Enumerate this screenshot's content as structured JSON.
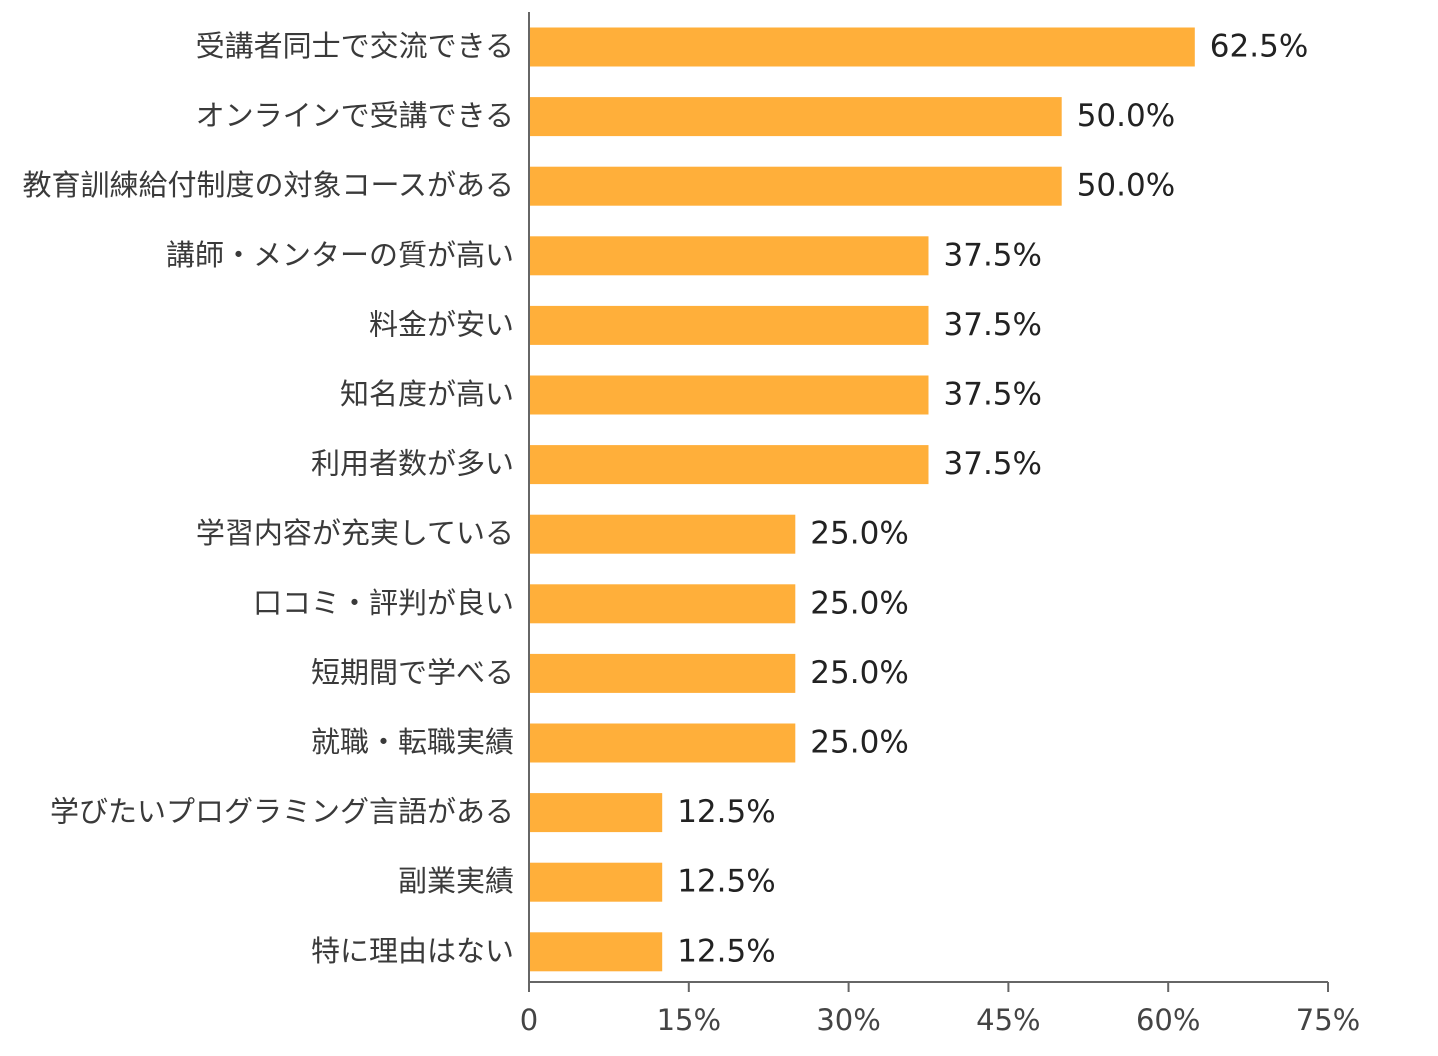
{
  "chart_data": {
    "type": "bar",
    "orientation": "horizontal",
    "categories": [
      "受講者同士で交流できる",
      "オンラインで受講できる",
      "教育訓練給付制度の対象コースがある",
      "講師・メンターの質が高い",
      "料金が安い",
      "知名度が高い",
      "利用者数が多い",
      "学習内容が充実している",
      "口コミ・評判が良い",
      "短期間で学べる",
      "就職・転職実績",
      "学びたいプログラミング言語がある",
      "副業実績",
      "特に理由はない"
    ],
    "values": [
      62.5,
      50.0,
      50.0,
      37.5,
      37.5,
      37.5,
      37.5,
      25.0,
      25.0,
      25.0,
      25.0,
      12.5,
      12.5,
      12.5
    ],
    "value_labels": [
      "62.5%",
      "50.0%",
      "50.0%",
      "37.5%",
      "37.5%",
      "37.5%",
      "37.5%",
      "25.0%",
      "25.0%",
      "25.0%",
      "25.0%",
      "12.5%",
      "12.5%",
      "12.5%"
    ],
    "xlim": [
      0,
      75
    ],
    "x_ticks": [
      0,
      15,
      30,
      45,
      60,
      75
    ],
    "x_tick_labels": [
      "0",
      "15%",
      "30%",
      "45%",
      "60%",
      "75%"
    ],
    "title": "",
    "xlabel": "",
    "ylabel": "",
    "grid": false,
    "legend": "none",
    "colors": {
      "bar": "#FFAF3A",
      "axis": "#666666"
    }
  }
}
